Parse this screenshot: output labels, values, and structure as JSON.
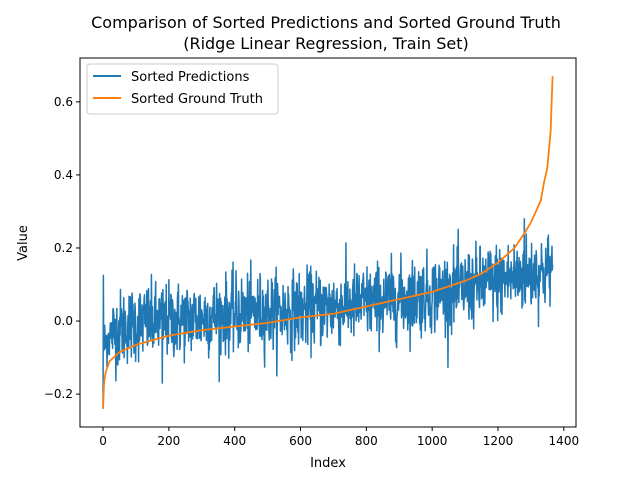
{
  "chart_data": {
    "type": "line",
    "title_line1": "Comparison of Sorted Predictions and Sorted Ground Truth",
    "title_line2": "(Ridge Linear Regression, Train Set)",
    "xlabel": "Index",
    "ylabel": "Value",
    "xlim": [
      -70,
      1437
    ],
    "ylim": [
      -0.29,
      0.72
    ],
    "x_ticks": [
      0,
      200,
      400,
      600,
      800,
      1000,
      1200,
      1400
    ],
    "x_tick_labels": [
      "0",
      "200",
      "400",
      "600",
      "800",
      "1000",
      "1200",
      "1400"
    ],
    "y_ticks": [
      -0.2,
      0.0,
      0.2,
      0.4,
      0.6
    ],
    "y_tick_labels": [
      "−0.2",
      "0.0",
      "0.2",
      "0.4",
      "0.6"
    ],
    "grid": false,
    "legend_position": "upper-left",
    "n_points": 1367,
    "series": [
      {
        "name": "Sorted Predictions",
        "color": "#1f77b4",
        "noisy": true,
        "trend_x": [
          0,
          20,
          50,
          100,
          200,
          300,
          400,
          500,
          600,
          700,
          800,
          900,
          1000,
          1100,
          1200,
          1300,
          1367
        ],
        "trend_y": [
          -0.07,
          -0.04,
          -0.02,
          -0.005,
          0.0,
          0.01,
          0.02,
          0.025,
          0.03,
          0.04,
          0.05,
          0.06,
          0.075,
          0.09,
          0.11,
          0.13,
          0.14
        ],
        "spread": 0.065,
        "annotated_points": [
          {
            "x": 0,
            "y": -0.24
          },
          {
            "x": 1,
            "y": 0.125
          },
          {
            "x": 180,
            "y": -0.17
          },
          {
            "x": 1280,
            "y": 0.28
          }
        ]
      },
      {
        "name": "Sorted Ground Truth",
        "color": "#ff7f0e",
        "noisy": false,
        "x": [
          0,
          3,
          8,
          20,
          50,
          100,
          200,
          300,
          400,
          500,
          600,
          700,
          800,
          900,
          1000,
          1100,
          1150,
          1200,
          1250,
          1280,
          1300,
          1320,
          1330,
          1340,
          1350,
          1355,
          1360,
          1363,
          1366
        ],
        "y": [
          -0.24,
          -0.17,
          -0.14,
          -0.11,
          -0.085,
          -0.065,
          -0.04,
          -0.025,
          -0.015,
          -0.005,
          0.01,
          0.02,
          0.04,
          0.06,
          0.08,
          0.11,
          0.13,
          0.16,
          0.2,
          0.24,
          0.27,
          0.31,
          0.33,
          0.38,
          0.42,
          0.47,
          0.52,
          0.6,
          0.67
        ]
      }
    ]
  }
}
